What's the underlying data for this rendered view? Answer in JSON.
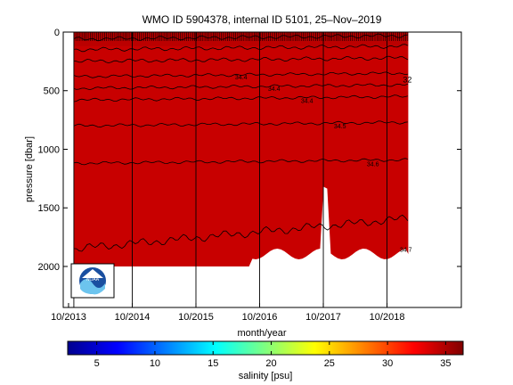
{
  "chart_data": {
    "type": "heatmap",
    "title": "WMO ID 5904378, internal ID 5101, 25–Nov–2019",
    "xlabel": "month/year",
    "ylabel": "pressure [dbar]",
    "x_ticks": [
      "10/2013",
      "10/2014",
      "10/2015",
      "10/2016",
      "10/2017",
      "10/2018"
    ],
    "y_ticks": [
      0,
      500,
      1000,
      1500,
      2000
    ],
    "ylim": [
      2350,
      0
    ],
    "xlim": [
      "2013-09",
      "2019-12"
    ],
    "data_range": {
      "start": "2013-11",
      "end": "2019-02",
      "max_pressure": 2000
    },
    "colorbar": {
      "label": "salinity [psu]",
      "ticks": [
        5,
        10,
        15,
        20,
        25,
        30,
        35
      ],
      "range": [
        2.5,
        36.5
      ],
      "colormap": "jet"
    },
    "dominant_color": "#c80000",
    "grid": false,
    "contours": [
      {
        "label": "",
        "pressure": 60
      },
      {
        "label": "",
        "pressure": 150
      },
      {
        "label": "",
        "pressure": 250
      },
      {
        "label": "34.4",
        "pressure": 380
      },
      {
        "label": "34.4",
        "pressure": 480
      },
      {
        "label": "34.4",
        "pressure": 580
      },
      {
        "label": "34.5",
        "pressure": 800
      },
      {
        "label": "34.6",
        "pressure": 1120
      },
      {
        "label": "34.7",
        "pressure": 1850
      }
    ],
    "annotations": [
      "32"
    ],
    "logo": "noaa-logo"
  }
}
